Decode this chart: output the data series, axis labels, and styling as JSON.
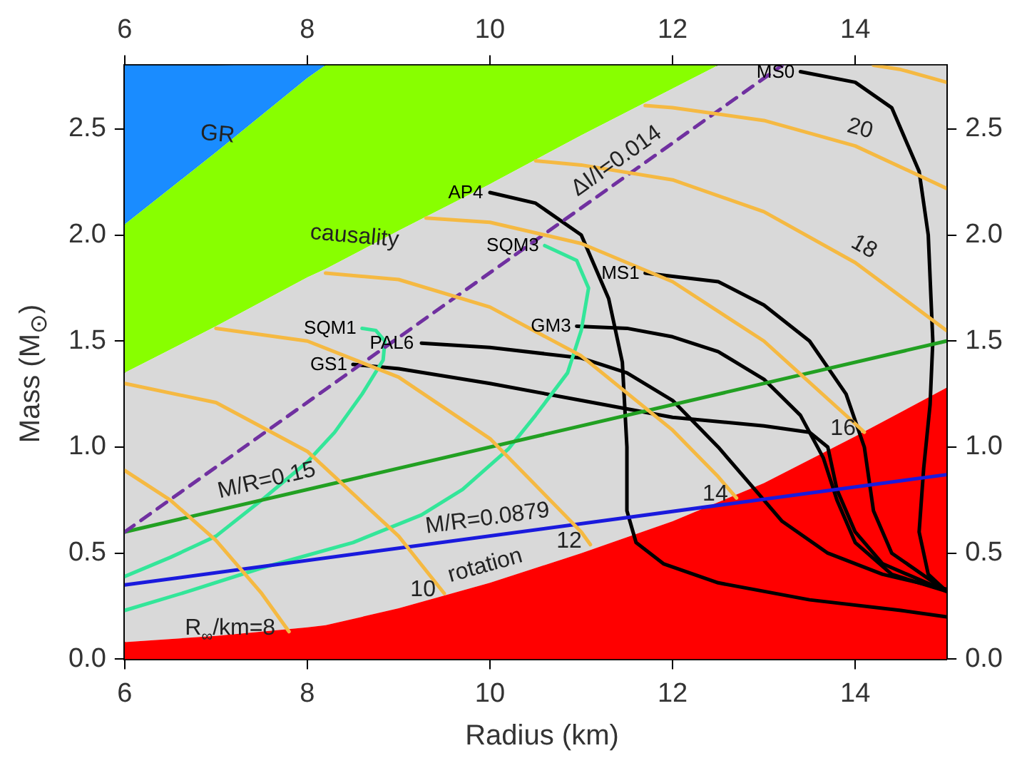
{
  "chart_data": {
    "type": "line",
    "xlabel": "Radius (km)",
    "ylabel": "Mass (M$_{⊙}$)",
    "xlim": [
      6,
      15
    ],
    "xticks": [
      6,
      8,
      10,
      12,
      14
    ],
    "x2lim": [
      6,
      15
    ],
    "x2ticks": [
      6,
      8,
      10,
      12,
      14
    ],
    "ylim": [
      0,
      2.8
    ],
    "yticks": [
      {
        "value": 0,
        "label": "0.0"
      },
      0.5,
      {
        "value": 1,
        "label": "1.0"
      },
      1.5,
      {
        "value": 2,
        "label": "2.0"
      },
      2.5
    ],
    "y2lim": [
      0,
      2.8
    ],
    "y2ticks": [
      {
        "value": 0,
        "label": "0.0"
      },
      0.5,
      {
        "value": 1,
        "label": "1.0"
      },
      1.5,
      {
        "value": 2,
        "label": "2.0"
      },
      2.5
    ],
    "legend": false,
    "marker": "none",
    "stacked": true,
    "x": [
      6,
      7,
      8,
      8.2,
      9,
      10,
      11,
      12,
      12.5,
      13,
      14,
      15
    ],
    "series": [
      {
        "type": "area",
        "color": "#ff0000",
        "values": [
          0.08,
          0.11,
          0.15,
          0.16,
          0.24,
          0.36,
          0.5,
          0.65,
          0.74,
          0.83,
          1.05,
          1.28
        ]
      },
      {
        "type": "area",
        "color": "#d9d9d9",
        "values": [
          1.27,
          1.46,
          1.65,
          1.68,
          1.78,
          1.88,
          1.97,
          2.04,
          2.06,
          1.97,
          1.75,
          1.52
        ]
      },
      {
        "type": "area",
        "color": "#88ff00",
        "values": [
          0.7,
          0.82,
          0.94,
          0.96,
          0.78,
          0.56,
          0.33,
          0.11,
          0,
          0,
          0,
          0
        ]
      },
      {
        "type": "area",
        "color": "#1a8cff",
        "values": [
          0.75,
          0.41,
          0.07,
          0,
          0,
          0,
          0,
          0,
          0,
          0,
          0,
          0
        ]
      },
      {
        "color": "#f5b942",
        "x": [
          6,
          6.5,
          7,
          7.5,
          7.8
        ],
        "values": [
          0.89,
          0.75,
          0.56,
          0.31,
          0.13
        ]
      },
      {
        "color": "#f5b942",
        "x": [
          6,
          7,
          8,
          9,
          9.5
        ],
        "values": [
          1.3,
          1.21,
          0.98,
          0.58,
          0.31
        ]
      },
      {
        "color": "#f5b942",
        "x": [
          7,
          8,
          9,
          10,
          11,
          11.1
        ],
        "values": [
          1.56,
          1.5,
          1.33,
          1.04,
          0.6,
          0.54
        ]
      },
      {
        "color": "#f5b942",
        "x": [
          8.2,
          9,
          10,
          11,
          12,
          12.5,
          12.7
        ],
        "values": [
          1.82,
          1.79,
          1.66,
          1.43,
          1.08,
          0.86,
          0.76
        ]
      },
      {
        "color": "#f5b942",
        "x": [
          9.3,
          10,
          11,
          12,
          13,
          14,
          14.1
        ],
        "values": [
          2.08,
          2.06,
          1.96,
          1.78,
          1.5,
          1.11,
          1.07
        ]
      },
      {
        "color": "#f5b942",
        "x": [
          10.5,
          11,
          12,
          13,
          14,
          15
        ],
        "values": [
          2.35,
          2.33,
          2.26,
          2.11,
          1.87,
          1.55
        ]
      },
      {
        "color": "#f5b942",
        "x": [
          11.7,
          12,
          13,
          14,
          15
        ],
        "values": [
          2.61,
          2.6,
          2.54,
          2.42,
          2.22
        ]
      },
      {
        "color": "#f5b942",
        "x": [
          14.2,
          14.5,
          15
        ],
        "values": [
          2.8,
          2.78,
          2.72
        ]
      },
      {
        "color": "#7030a0",
        "line_style": "dashed",
        "x": [
          6,
          13.2
        ],
        "values": [
          0.6,
          2.8
        ]
      },
      {
        "color": "#22a022",
        "x": [
          6,
          15
        ],
        "values": [
          0.6,
          1.5
        ]
      },
      {
        "color": "#1a1add",
        "x": [
          6,
          15
        ],
        "values": [
          0.35,
          0.87
        ]
      },
      {
        "name": "SQM1",
        "color": "#33e699",
        "x": [
          8.6,
          8.75,
          8.85,
          8.83,
          8.6,
          8.3,
          8,
          7.5,
          7,
          6.5,
          6
        ],
        "values": [
          1.56,
          1.55,
          1.5,
          1.41,
          1.25,
          1.07,
          0.93,
          0.75,
          0.58,
          0.48,
          0.39
        ]
      },
      {
        "name": "SQM3",
        "color": "#33e699",
        "x": [
          10.6,
          10.95,
          11.08,
          11,
          10.85,
          10.5,
          10.2,
          9.7,
          9.25,
          8.5,
          7.5,
          6.7,
          6
        ],
        "values": [
          1.95,
          1.88,
          1.75,
          1.55,
          1.35,
          1.15,
          0.99,
          0.8,
          0.68,
          0.55,
          0.43,
          0.32,
          0.23
        ]
      },
      {
        "name": "GS1",
        "color": "#000000",
        "x": [
          8.5,
          9,
          10,
          11,
          12,
          13,
          13.5,
          13.7,
          13.8,
          14,
          14.3,
          15
        ],
        "values": [
          1.39,
          1.37,
          1.3,
          1.22,
          1.14,
          1.1,
          1.07,
          1,
          0.8,
          0.6,
          0.45,
          0.32
        ]
      },
      {
        "name": "PAL6",
        "color": "#000000",
        "x": [
          9.25,
          10,
          11,
          11.5,
          12,
          12.5,
          12.9,
          13.2,
          13.7,
          14.3,
          15
        ],
        "values": [
          1.49,
          1.47,
          1.42,
          1.35,
          1.22,
          1,
          0.8,
          0.65,
          0.5,
          0.4,
          0.33
        ]
      },
      {
        "name": "AP4",
        "color": "#000000",
        "x": [
          10,
          10.5,
          11,
          11.3,
          11.45,
          11.5,
          11.5,
          11.6,
          11.9,
          12.5,
          13.5,
          14.5,
          15
        ],
        "values": [
          2.2,
          2.15,
          2,
          1.7,
          1.4,
          1,
          0.7,
          0.55,
          0.45,
          0.36,
          0.28,
          0.23,
          0.2
        ]
      },
      {
        "name": "GM3",
        "color": "#000000",
        "x": [
          10.95,
          11.5,
          12,
          12.5,
          13,
          13.4,
          13.65,
          13.8,
          14,
          14.4,
          15
        ],
        "values": [
          1.57,
          1.56,
          1.52,
          1.45,
          1.32,
          1.15,
          0.95,
          0.75,
          0.55,
          0.4,
          0.32
        ]
      },
      {
        "name": "MS1",
        "color": "#000000",
        "x": [
          11.7,
          12.5,
          13,
          13.5,
          13.9,
          14.1,
          14.2,
          14.4,
          15
        ],
        "values": [
          1.82,
          1.78,
          1.67,
          1.5,
          1.25,
          1,
          0.7,
          0.5,
          0.32
        ]
      },
      {
        "name": "MS0",
        "color": "#000000",
        "x": [
          13.4,
          14,
          14.4,
          14.7,
          14.8,
          14.85,
          14.82,
          14.75,
          14.7,
          14.8,
          15
        ],
        "values": [
          2.77,
          2.72,
          2.6,
          2.3,
          2,
          1.5,
          1.2,
          0.9,
          0.6,
          0.4,
          0.32
        ]
      }
    ],
    "annotations": [
      {
        "text": "GR",
        "x": 7,
        "y": 2.39
      },
      {
        "text": "causality",
        "x": 8.5,
        "y": 1.91
      },
      {
        "text": "ΔI/I=0.014",
        "x": 11.5,
        "y": 2.28
      },
      {
        "text": "M/R=0.15",
        "x": 7.6,
        "y": 0.76
      },
      {
        "text": "M/R=0.0879",
        "x": 10,
        "y": 0.58
      },
      {
        "text": "rotation",
        "x": 10,
        "y": 0.36
      },
      {
        "text": "R$_{∞}$/km=8",
        "x": 7.8,
        "y": 0.13
      },
      {
        "text": "10",
        "x": 9.5,
        "y": 0.31
      },
      {
        "text": "12",
        "x": 11.1,
        "y": 0.54
      },
      {
        "text": "14",
        "x": 12.7,
        "y": 0.76
      },
      {
        "text": "16",
        "x": 14.1,
        "y": 1.07
      },
      {
        "text": "18",
        "x": 14,
        "y": 1.87
      },
      {
        "text": "20",
        "x": 14,
        "y": 2.42
      }
    ]
  }
}
